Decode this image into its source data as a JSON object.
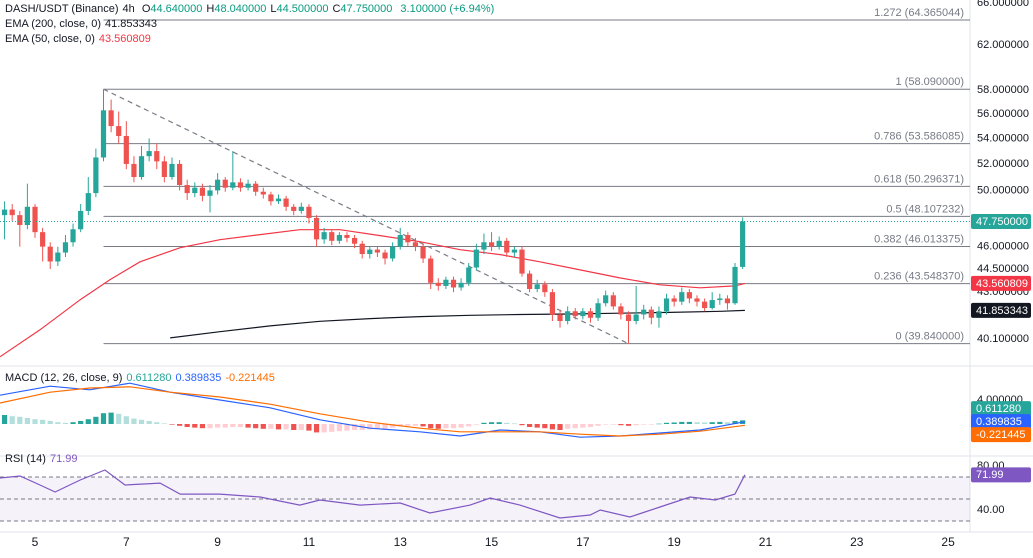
{
  "chart_data": {
    "type": "candlestick",
    "log_scale": true,
    "up_color": "#26a69a",
    "down_color": "#ef5350",
    "header": {
      "symbol": "DASH/USDT (Binance)",
      "interval": "4h",
      "fields": [
        {
          "key": "O",
          "value": "44.640000"
        },
        {
          "key": "H",
          "value": "48.040000"
        },
        {
          "key": "L",
          "value": "44.500000"
        },
        {
          "key": "C",
          "value": "47.750000"
        }
      ],
      "change": "3.100000 (+6.94%)"
    },
    "xlim": [
      4.233,
      25.48
    ],
    "xticks": [
      5,
      7,
      9,
      11,
      13,
      15,
      17,
      19,
      21,
      23,
      25
    ],
    "ylim": [
      38.6,
      66.3
    ],
    "yticks": [
      {
        "value": 66,
        "label": "66.000000"
      },
      {
        "value": 62,
        "label": "62.000000"
      },
      {
        "value": 58,
        "label": "58.000000"
      },
      {
        "value": 56,
        "label": "56.000000"
      },
      {
        "value": 54,
        "label": "54.000000"
      },
      {
        "value": 52,
        "label": "52.000000"
      },
      {
        "value": 50,
        "label": "50.000000"
      },
      {
        "value": 46,
        "label": "46.000000"
      },
      {
        "value": 44.5,
        "label": "44.500000"
      },
      {
        "value": 43,
        "label": "43.000000"
      },
      {
        "value": 40.1,
        "label": "40.100000"
      }
    ],
    "x": [
      4.333,
      4.5,
      4.667,
      4.833,
      5,
      5.167,
      5.333,
      5.5,
      5.667,
      5.833,
      6,
      6.167,
      6.333,
      6.5,
      6.667,
      6.833,
      7,
      7.167,
      7.333,
      7.5,
      7.667,
      7.833,
      8,
      8.167,
      8.333,
      8.5,
      8.667,
      8.833,
      9,
      9.167,
      9.333,
      9.5,
      9.667,
      9.833,
      10,
      10.167,
      10.333,
      10.5,
      10.667,
      10.833,
      11,
      11.167,
      11.333,
      11.5,
      11.667,
      11.833,
      12,
      12.167,
      12.333,
      12.5,
      12.667,
      12.833,
      13,
      13.167,
      13.333,
      13.5,
      13.667,
      13.833,
      14,
      14.167,
      14.333,
      14.5,
      14.667,
      14.833,
      15,
      15.167,
      15.333,
      15.5,
      15.667,
      15.833,
      16,
      16.167,
      16.333,
      16.5,
      16.667,
      16.833,
      17,
      17.167,
      17.333,
      17.5,
      17.667,
      17.833,
      18,
      18.167,
      18.333,
      18.5,
      18.667,
      18.833,
      19,
      19.167,
      19.333,
      19.5,
      19.667,
      19.833,
      20,
      20.167,
      20.333,
      20.5
    ],
    "open": [
      48.2,
      48.6,
      48.2,
      47.5,
      48.8,
      47.0,
      46.0,
      45.0,
      45.6,
      46.3,
      47.2,
      48.5,
      49.8,
      52.5,
      56.3,
      55.0,
      54.2,
      52.0,
      51.0,
      52.6,
      53.0,
      52.2,
      51.0,
      52.0,
      50.4,
      49.8,
      50.2,
      49.6,
      50.0,
      50.8,
      50.2,
      50.6,
      50.2,
      50.5,
      49.9,
      49.7,
      49.2,
      49.4,
      48.8,
      48.5,
      48.8,
      48.0,
      46.5,
      47.0,
      46.4,
      46.8,
      46.6,
      46.2,
      45.5,
      45.8,
      45.6,
      45.2,
      46.0,
      46.8,
      46.3,
      46.0,
      45.2,
      43.6,
      43.4,
      43.8,
      43.3,
      43.6,
      44.6,
      45.8,
      46.3,
      46.0,
      46.4,
      45.6,
      45.8,
      44.2,
      43.2,
      43.5,
      43.0,
      41.6,
      41.2,
      41.8,
      41.5,
      41.8,
      41.4,
      42.3,
      42.8,
      42.1,
      41.6,
      41.2,
      41.6,
      41.9,
      41.4,
      41.8,
      42.6,
      42.4,
      43.0,
      42.6,
      42.4,
      42.0,
      42.5,
      42.6,
      42.3,
      44.64
    ],
    "high": [
      49.2,
      49.0,
      48.5,
      50.5,
      49.0,
      47.3,
      46.3,
      46.0,
      46.8,
      47.6,
      49.0,
      51.0,
      53.2,
      58.09,
      57.2,
      56.2,
      55.4,
      52.6,
      53.4,
      54.0,
      53.6,
      52.6,
      52.5,
      52.3,
      50.8,
      50.6,
      50.5,
      50.4,
      51.3,
      51.0,
      53.0,
      50.9,
      50.8,
      50.7,
      50.2,
      49.9,
      49.7,
      49.6,
      49.0,
      49.1,
      49.0,
      48.2,
      47.3,
      47.2,
      47.0,
      47.0,
      46.8,
      46.4,
      46.0,
      46.0,
      45.8,
      46.3,
      47.3,
      47.0,
      46.6,
      46.2,
      45.4,
      43.9,
      44.0,
      44.0,
      43.9,
      44.9,
      46.2,
      46.9,
      47.0,
      46.7,
      46.6,
      46.0,
      46.0,
      44.4,
      43.8,
      43.7,
      43.2,
      41.9,
      42.1,
      42.0,
      42.0,
      42.0,
      42.6,
      43.1,
      43.0,
      42.3,
      41.8,
      43.4,
      42.2,
      42.1,
      42.1,
      42.9,
      42.8,
      43.3,
      43.2,
      42.8,
      42.6,
      43.0,
      42.9,
      42.8,
      44.9,
      48.04
    ],
    "low": [
      46.5,
      47.8,
      46.0,
      47.2,
      46.6,
      45.0,
      44.5,
      44.7,
      45.3,
      46.0,
      47.0,
      48.2,
      49.5,
      52.2,
      54.5,
      53.6,
      51.6,
      50.6,
      50.8,
      52.2,
      51.6,
      50.6,
      50.8,
      50.0,
      49.3,
      49.5,
      49.2,
      48.4,
      49.7,
      49.9,
      50.0,
      49.9,
      50.0,
      49.6,
      49.4,
      48.9,
      49.0,
      48.5,
      48.2,
      48.3,
      47.6,
      46.0,
      46.2,
      46.1,
      46.2,
      46.3,
      45.9,
      45.2,
      45.2,
      45.3,
      44.8,
      45.0,
      45.8,
      46.0,
      45.7,
      44.9,
      43.2,
      43.1,
      43.2,
      43.0,
      43.1,
      43.4,
      44.4,
      45.5,
      45.7,
      45.8,
      45.3,
      45.3,
      44.0,
      43.0,
      43.0,
      42.7,
      41.2,
      40.8,
      41.0,
      41.3,
      41.3,
      41.1,
      41.2,
      42.1,
      41.9,
      41.3,
      39.84,
      41.0,
      41.3,
      41.0,
      40.8,
      41.6,
      42.1,
      42.2,
      42.3,
      42.1,
      41.8,
      41.9,
      42.2,
      41.9,
      42.2,
      44.5
    ],
    "close": [
      48.6,
      48.2,
      47.5,
      48.8,
      47.0,
      46.0,
      45.0,
      45.6,
      46.3,
      47.2,
      48.5,
      49.8,
      52.5,
      56.3,
      55.0,
      54.2,
      52.0,
      51.0,
      52.6,
      53.0,
      52.2,
      51.0,
      52.0,
      50.4,
      49.8,
      50.2,
      49.6,
      50.0,
      50.8,
      50.2,
      50.6,
      50.2,
      50.5,
      49.9,
      49.7,
      49.2,
      49.4,
      48.8,
      48.5,
      48.8,
      48.0,
      46.5,
      47.0,
      46.4,
      46.8,
      46.6,
      46.2,
      45.5,
      45.8,
      45.6,
      45.2,
      46.0,
      46.8,
      46.3,
      46.0,
      45.2,
      43.6,
      43.4,
      43.8,
      43.3,
      43.6,
      44.6,
      45.8,
      46.3,
      46.0,
      46.4,
      45.6,
      45.8,
      44.2,
      43.2,
      43.5,
      43.0,
      41.6,
      41.2,
      41.8,
      41.5,
      41.8,
      41.4,
      42.3,
      42.8,
      42.1,
      41.6,
      41.2,
      41.6,
      41.9,
      41.4,
      41.8,
      42.6,
      42.4,
      43.0,
      42.6,
      42.4,
      42.0,
      42.5,
      42.6,
      42.3,
      44.64,
      47.75
    ],
    "last_price": {
      "value": 47.75,
      "label": "47.750000",
      "color": "#26a69a"
    },
    "series": [
      {
        "name": "EMA (200, close, 0)",
        "color": "#131722",
        "last_label": "41.853343",
        "x": [
          7.96,
          9.05,
          10.15,
          11.24,
          12.34,
          13.43,
          14.53,
          15.62,
          16.72,
          17.81,
          18.91,
          20.01,
          20.55
        ],
        "values": [
          40.18,
          40.55,
          40.9,
          41.18,
          41.35,
          41.47,
          41.55,
          41.6,
          41.63,
          41.68,
          41.73,
          41.8,
          41.853343
        ]
      },
      {
        "name": "EMA (50, close, 0)",
        "color": "#f23645",
        "last_label": "43.560809",
        "x": [
          4.233,
          5.11,
          5.99,
          6.64,
          7.3,
          8.18,
          9.05,
          9.93,
          10.8,
          11.68,
          12.56,
          13.43,
          14.31,
          15.19,
          16.06,
          16.94,
          17.81,
          18.69,
          19.57,
          20.33,
          20.55
        ],
        "values": [
          39.07,
          40.67,
          42.52,
          43.8,
          44.98,
          45.93,
          46.48,
          46.83,
          47.17,
          47.17,
          46.76,
          46.34,
          45.79,
          45.46,
          44.98,
          44.44,
          43.92,
          43.47,
          43.28,
          43.4,
          43.560809
        ]
      }
    ],
    "fib_levels": [
      {
        "value": 64.365044,
        "label": "1.272 (64.365044)"
      },
      {
        "value": 58.09,
        "label": "1 (58.090000)"
      },
      {
        "value": 53.586085,
        "label": "0.786 (53.586085)"
      },
      {
        "value": 50.296371,
        "label": "0.618 (50.296371)"
      },
      {
        "value": 48.107232,
        "label": "0.5 (48.107232)"
      },
      {
        "value": 46.013375,
        "label": "0.382 (46.013375)"
      },
      {
        "value": 43.54837,
        "label": "0.236 (43.548370)"
      },
      {
        "value": 39.84,
        "label": "0 (39.840000)"
      }
    ],
    "fib_color": "#787b86",
    "trendline": {
      "x": [
        6.5,
        18.0
      ],
      "y": [
        58.09,
        39.84
      ],
      "color": "#787b86"
    },
    "macd": {
      "title": "MACD (12, 26, close, 9)",
      "ylim": [
        -5.33,
        9.33
      ],
      "yticks": [
        {
          "value": 4,
          "label": "4.000000"
        }
      ],
      "histogram": {
        "last_label": "0.611280",
        "colors": [
          "#26a69a",
          "#b2dfdb",
          "#ef5350",
          "#ffcdd2"
        ],
        "values": [
          1.5,
          1.3,
          1.2,
          1.0,
          0.8,
          0.7,
          0.5,
          0.3,
          0.2,
          0.3,
          0.5,
          0.8,
          1.2,
          1.8,
          1.9,
          1.7,
          1.3,
          0.9,
          0.7,
          0.5,
          0.3,
          0.1,
          -0.1,
          -0.3,
          -0.5,
          -0.6,
          -0.7,
          -0.7,
          -0.6,
          -0.6,
          -0.5,
          -0.5,
          -0.6,
          -0.7,
          -0.8,
          -0.8,
          -0.9,
          -0.9,
          -1.0,
          -1.0,
          -1.1,
          -1.4,
          -1.4,
          -1.3,
          -1.2,
          -1.1,
          -1.0,
          -1.0,
          -0.9,
          -0.8,
          -0.8,
          -0.6,
          -0.4,
          -0.3,
          -0.3,
          -0.4,
          -0.7,
          -0.8,
          -0.7,
          -0.7,
          -0.6,
          -0.4,
          -0.1,
          0.2,
          0.3,
          0.3,
          0.2,
          0.1,
          -0.2,
          -0.5,
          -0.6,
          -0.7,
          -0.9,
          -1.0,
          -0.8,
          -0.7,
          -0.6,
          -0.5,
          -0.3,
          -0.1,
          -0.1,
          -0.2,
          -0.3,
          -0.2,
          -0.1,
          -0.1,
          0.05,
          0.2,
          0.25,
          0.35,
          0.35,
          0.3,
          0.25,
          0.3,
          0.35,
          0.3,
          0.5,
          0.61128
        ]
      },
      "x": [
        4.233,
        5.33,
        6.2,
        7.08,
        7.96,
        9.05,
        10.15,
        11.24,
        12.34,
        13.43,
        14.31,
        15.19,
        16.06,
        16.94,
        17.81,
        18.69,
        19.57,
        20.55
      ],
      "series": [
        {
          "color": "#2962ff",
          "last_label": "0.389835",
          "values": [
            4.8,
            6.3,
            5.7,
            6.8,
            5.3,
            4,
            2.7,
            0.7,
            -0.7,
            -1.3,
            -2,
            -1,
            -1.3,
            -2.2,
            -2,
            -1.5,
            -1,
            0.389835
          ]
        },
        {
          "color": "#ff6d00",
          "last_label": "-0.221445",
          "values": [
            3.5,
            5.3,
            6,
            6.2,
            5.3,
            4.5,
            3.3,
            1.7,
            0.3,
            -0.7,
            -1.3,
            -1.3,
            -1.3,
            -1.7,
            -2,
            -1.7,
            -1.2,
            -0.221445
          ]
        }
      ]
    },
    "rsi": {
      "title": "RSI (14)",
      "value_label": "71.99",
      "color": "#7e57c2",
      "ylim": [
        20,
        88.2
      ],
      "yticks": [
        {
          "value": 80,
          "label": "80.00"
        },
        {
          "value": 40,
          "label": "40.00"
        }
      ],
      "bands": [
        70,
        50,
        30
      ],
      "x": [
        4.233,
        4.67,
        5.11,
        5.44,
        5.99,
        6.53,
        6.97,
        7.74,
        8.18,
        9.05,
        9.93,
        10.8,
        11.24,
        12.12,
        13.0,
        13.65,
        14.53,
        14.97,
        15.62,
        16.5,
        17.16,
        17.38,
        18.03,
        18.69,
        19.35,
        19.9,
        20.33,
        20.55
      ],
      "values": [
        69.1,
        70.9,
        62.7,
        56.4,
        67.3,
        76.4,
        62.7,
        64.5,
        54.5,
        54.5,
        51.8,
        44.5,
        49.1,
        44.5,
        46.4,
        37.3,
        44.5,
        50.9,
        44.5,
        32.7,
        35.5,
        40,
        33.6,
        42.7,
        51.8,
        49.1,
        54.5,
        71.99
      ]
    }
  }
}
